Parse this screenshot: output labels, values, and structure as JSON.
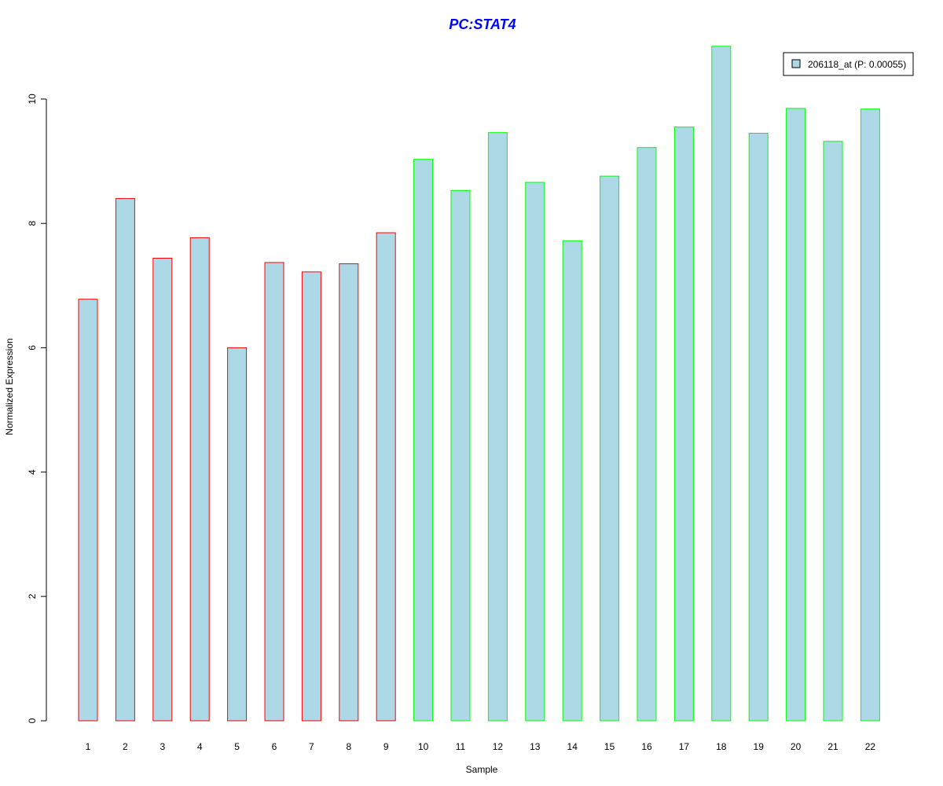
{
  "chart_data": {
    "type": "bar",
    "title": "PC:STAT4",
    "xlabel": "Sample",
    "ylabel": "Normalized Expression",
    "ylim": [
      0,
      10.85
    ],
    "yticks": [
      0,
      2,
      4,
      6,
      8,
      10
    ],
    "grid": false,
    "legend_position": "top-right",
    "categories": [
      "1",
      "2",
      "3",
      "4",
      "5",
      "6",
      "7",
      "8",
      "9",
      "10",
      "11",
      "12",
      "13",
      "14",
      "15",
      "16",
      "17",
      "18",
      "19",
      "20",
      "21",
      "22"
    ],
    "series": [
      {
        "name": "206118_at (P: 0.00055)",
        "values": [
          6.78,
          8.4,
          7.44,
          7.77,
          6.0,
          7.37,
          7.22,
          7.35,
          7.85,
          9.03,
          8.53,
          9.46,
          8.66,
          7.72,
          8.76,
          9.22,
          9.55,
          10.85,
          9.45,
          9.85,
          9.32,
          9.84
        ]
      }
    ],
    "group_of_bar": [
      "A",
      "A",
      "A",
      "A",
      "A",
      "A",
      "A",
      "A",
      "A",
      "B",
      "B",
      "B",
      "B",
      "B",
      "B",
      "B",
      "B",
      "B",
      "B",
      "B",
      "B",
      "B"
    ],
    "colors": {
      "bar_fill": "#add8e6",
      "group_A_border": "#ff0000",
      "group_B_border": "#00ff00",
      "title": "#0000ff",
      "axis": "#000000"
    }
  }
}
